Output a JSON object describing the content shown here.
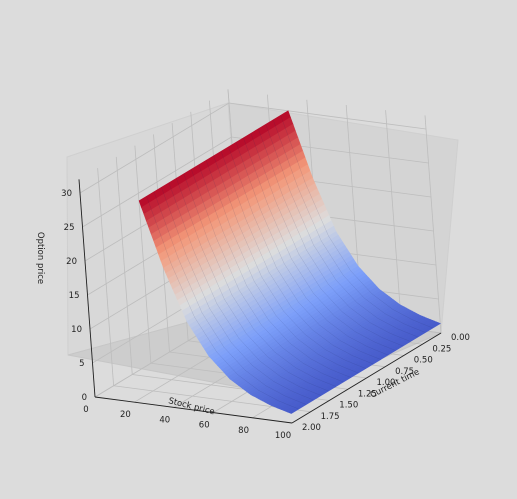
{
  "chart_data": {
    "type": "surface",
    "title": "",
    "xlabel": "Stock price",
    "ylabel": "Current time",
    "zlabel": "Option price",
    "xlim": [
      0,
      100
    ],
    "ylim": [
      0,
      2
    ],
    "zlim": [
      0,
      30
    ],
    "x_ticks": [
      "0",
      "20",
      "40",
      "60",
      "80",
      "100"
    ],
    "y_ticks": [
      "0.00",
      "0.25",
      "0.50",
      "0.75",
      "1.00",
      "1.25",
      "1.50",
      "1.75",
      "2.00"
    ],
    "z_ticks": [
      "0",
      "5",
      "10",
      "15",
      "20",
      "25",
      "30"
    ],
    "colormap": "coolwarm",
    "stock_price": [
      30,
      40,
      50,
      60,
      70,
      80,
      90,
      100
    ],
    "option_price": [
      30,
      20.5,
      13.0,
      8.3,
      5.3,
      3.4,
      2.2,
      1.4
    ],
    "grid": true
  }
}
